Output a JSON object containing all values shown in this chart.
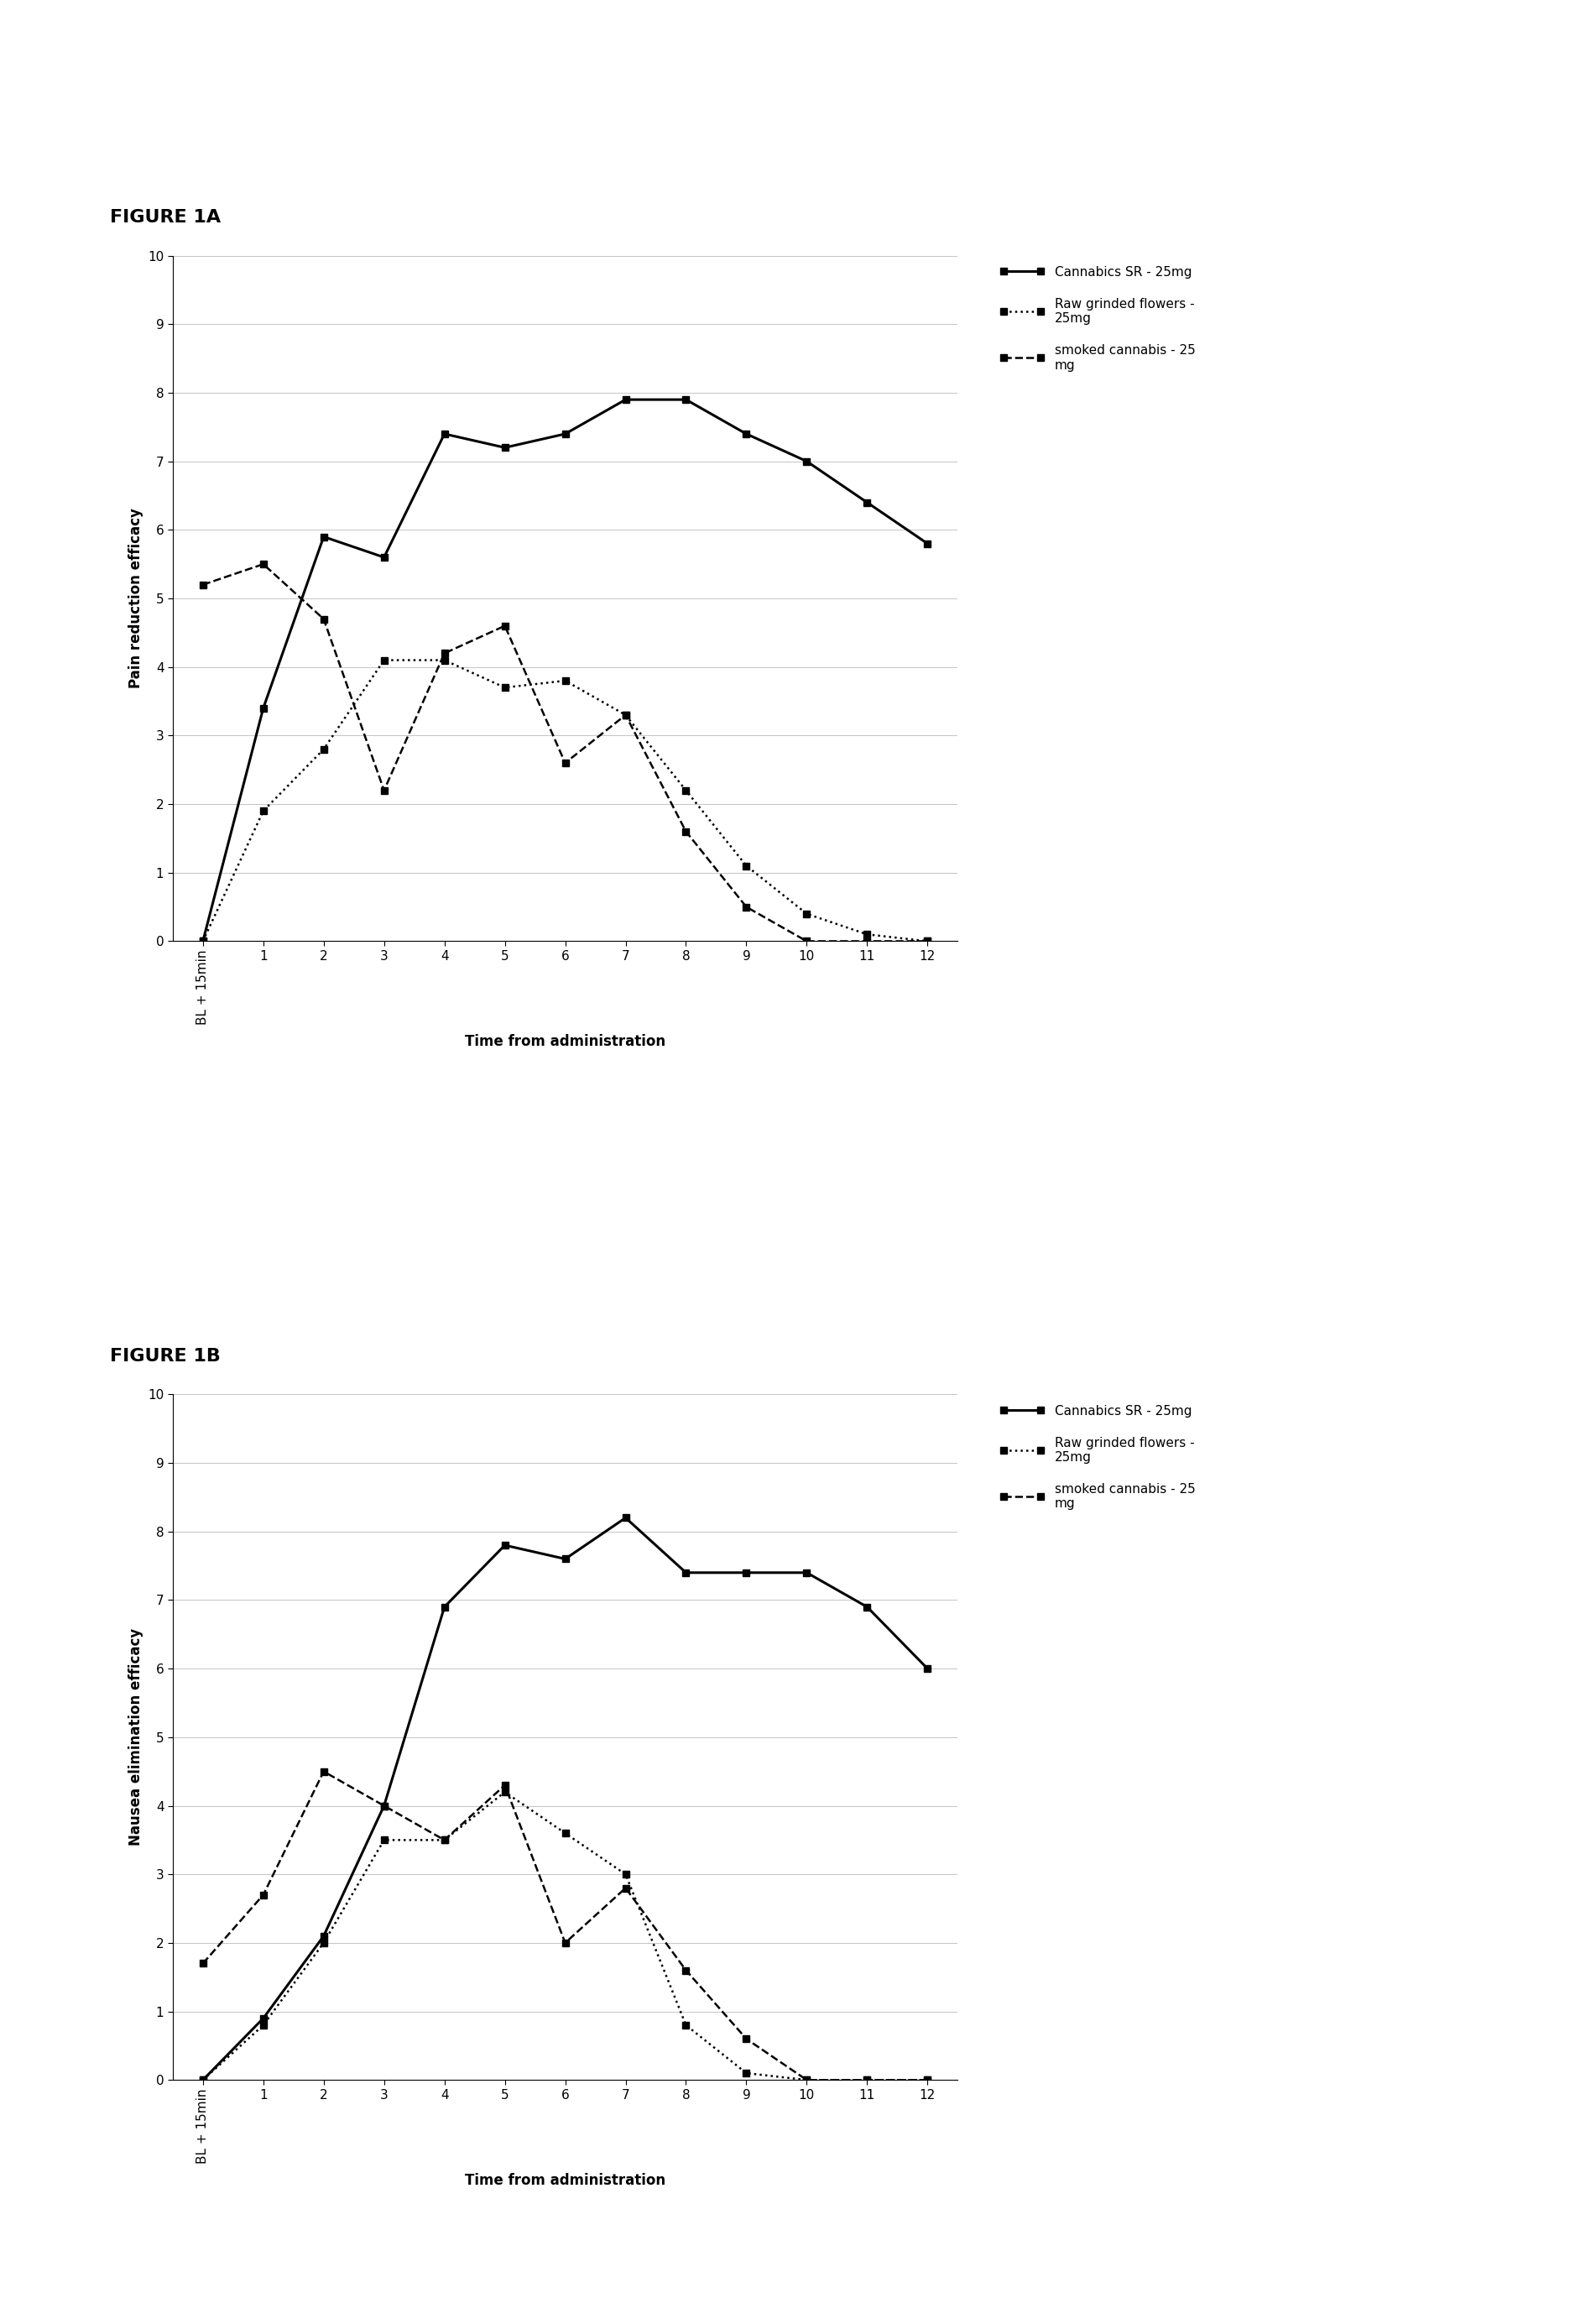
{
  "fig1a": {
    "title": "FIGURE 1A",
    "ylabel": "Pain reduction efficacy",
    "xlabel": "Time from administration",
    "x_labels": [
      "BL + 15min",
      "1",
      "2",
      "3",
      "4",
      "5",
      "6",
      "7",
      "8",
      "9",
      "10",
      "11",
      "12"
    ],
    "series": {
      "cannabics_sr": {
        "label": "Cannabics SR - 25mg",
        "y": [
          0.0,
          3.4,
          5.9,
          5.6,
          7.4,
          7.2,
          7.4,
          7.9,
          7.9,
          7.4,
          7.0,
          6.4,
          5.8
        ],
        "linestyle": "-",
        "marker": "s",
        "color": "#000000",
        "linewidth": 2.2,
        "markersize": 6
      },
      "raw_grinded": {
        "label": "Raw grinded flowers -\n25mg",
        "y": [
          0.0,
          1.9,
          2.8,
          4.1,
          4.1,
          3.7,
          3.8,
          3.3,
          2.2,
          1.1,
          0.4,
          0.1,
          0.0
        ],
        "linestyle": ":",
        "marker": "s",
        "color": "#000000",
        "linewidth": 1.8,
        "markersize": 6
      },
      "smoked": {
        "label": "smoked cannabis - 25\nmg",
        "y": [
          5.2,
          5.5,
          4.7,
          2.2,
          4.2,
          4.6,
          2.6,
          3.3,
          1.6,
          0.5,
          0.0,
          0.0,
          0.0
        ],
        "linestyle": "--",
        "marker": "s",
        "color": "#000000",
        "linewidth": 1.8,
        "markersize": 6
      }
    },
    "ylim": [
      0,
      10
    ],
    "yticks": [
      0,
      1,
      2,
      3,
      4,
      5,
      6,
      7,
      8,
      9,
      10
    ]
  },
  "fig1b": {
    "title": "FIGURE 1B",
    "ylabel": "Nausea elimination efficacy",
    "xlabel": "Time from administration",
    "x_labels": [
      "BL + 15min",
      "1",
      "2",
      "3",
      "4",
      "5",
      "6",
      "7",
      "8",
      "9",
      "10",
      "11",
      "12"
    ],
    "series": {
      "cannabics_sr": {
        "label": "Cannabics SR - 25mg",
        "y": [
          0.0,
          0.9,
          2.1,
          4.0,
          6.9,
          7.8,
          7.6,
          8.2,
          7.4,
          7.4,
          7.4,
          6.9,
          6.0
        ],
        "linestyle": "-",
        "marker": "s",
        "color": "#000000",
        "linewidth": 2.2,
        "markersize": 6
      },
      "raw_grinded": {
        "label": "Raw grinded flowers -\n25mg",
        "y": [
          0.0,
          0.8,
          2.0,
          3.5,
          3.5,
          4.2,
          3.6,
          3.0,
          0.8,
          0.1,
          0.0,
          0.0,
          0.0
        ],
        "linestyle": ":",
        "marker": "s",
        "color": "#000000",
        "linewidth": 1.8,
        "markersize": 6
      },
      "smoked": {
        "label": "smoked cannabis - 25\nmg",
        "y": [
          1.7,
          2.7,
          4.5,
          4.0,
          3.5,
          4.3,
          2.0,
          2.8,
          1.6,
          0.6,
          0.0,
          0.0,
          0.0
        ],
        "linestyle": "--",
        "marker": "s",
        "color": "#000000",
        "linewidth": 1.8,
        "markersize": 6
      }
    },
    "ylim": [
      0,
      10
    ],
    "yticks": [
      0,
      1,
      2,
      3,
      4,
      5,
      6,
      7,
      8,
      9,
      10
    ]
  },
  "background_color": "#ffffff",
  "axis_label_fontsize": 12,
  "tick_fontsize": 11,
  "legend_fontsize": 11,
  "figure_title_fontsize": 16
}
